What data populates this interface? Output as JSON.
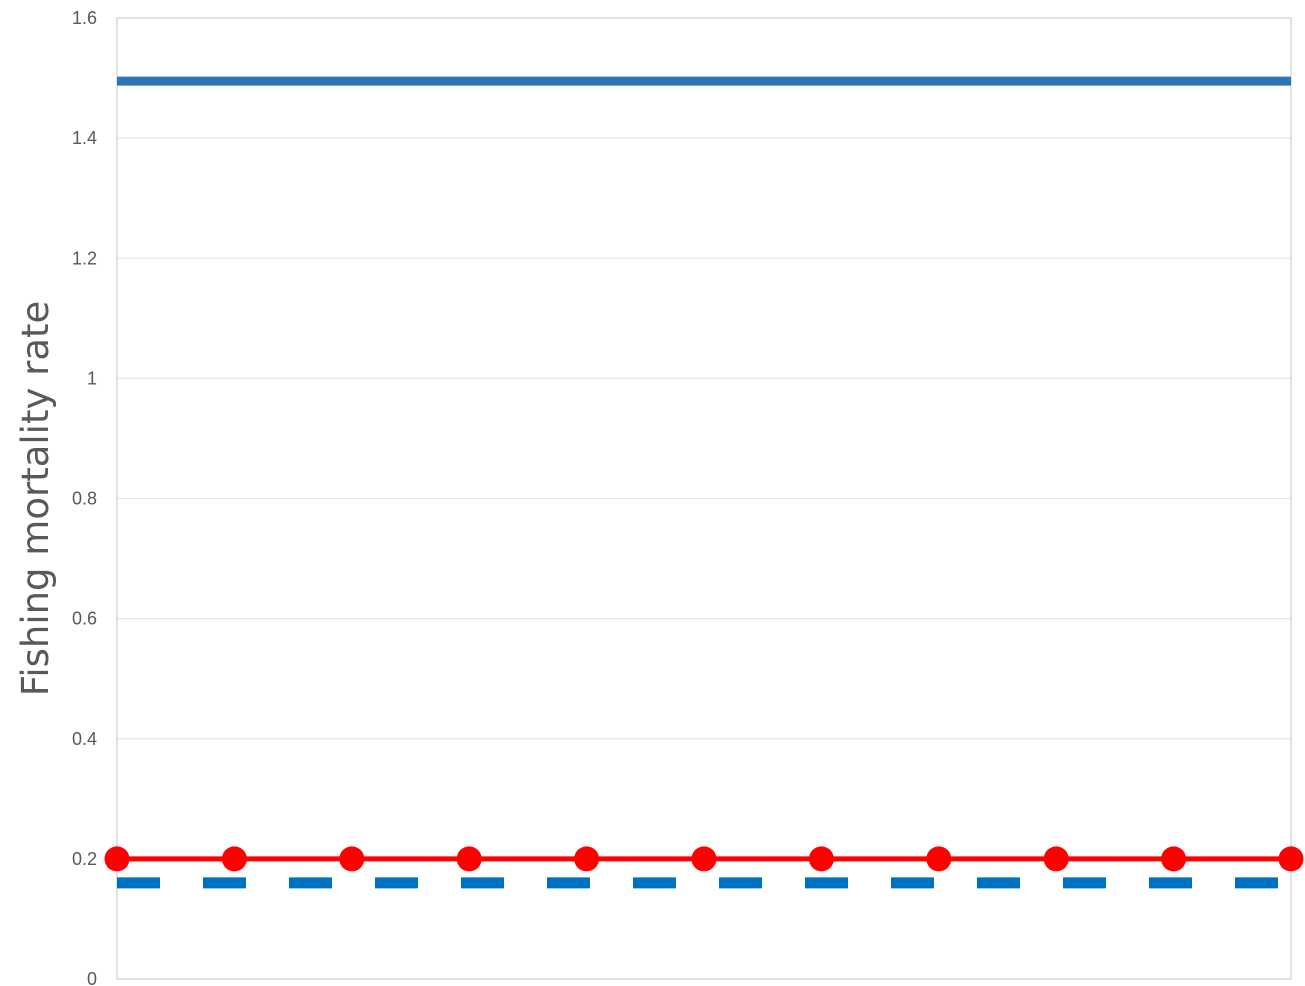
{
  "chart_data": {
    "type": "line",
    "title": "",
    "xlabel": "",
    "ylabel": "Fishing mortality rate",
    "ylim": [
      0,
      1.6
    ],
    "yticks": [
      0,
      0.2,
      0.4,
      0.6,
      0.8,
      1,
      1.2,
      1.4,
      1.6
    ],
    "ytick_labels": [
      "0",
      "0.2",
      "0.4",
      "0.6",
      "0.8",
      "1",
      "1.2",
      "1.4",
      "1.6"
    ],
    "grid": true,
    "legend": "none",
    "x": [
      1,
      2,
      3,
      4,
      5,
      6,
      7,
      8,
      9,
      10,
      11
    ],
    "series": [
      {
        "style": "solid",
        "color": "#2e75b6",
        "values": [
          1.495,
          1.495,
          1.495,
          1.495,
          1.495,
          1.495,
          1.495,
          1.495,
          1.495,
          1.495,
          1.495
        ]
      },
      {
        "style": "solid-markers",
        "color": "#ff0000",
        "values": [
          0.2,
          0.2,
          0.2,
          0.2,
          0.2,
          0.2,
          0.2,
          0.2,
          0.2,
          0.2,
          0.2
        ]
      },
      {
        "style": "dashed",
        "color": "#0070c0",
        "values": [
          0.16,
          0.16,
          0.16,
          0.16,
          0.16,
          0.16,
          0.16,
          0.16,
          0.16,
          0.16,
          0.16
        ]
      }
    ]
  }
}
